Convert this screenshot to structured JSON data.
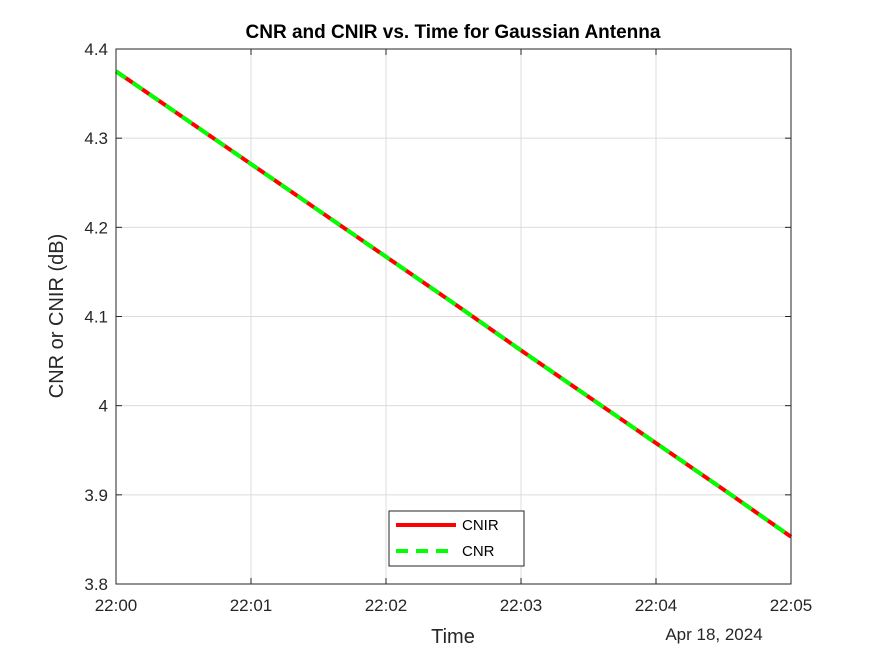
{
  "chart_data": {
    "type": "line",
    "title": "CNR and CNIR vs. Time for Gaussian Antenna",
    "xlabel": "Time",
    "ylabel": "CNR or CNIR (dB)",
    "date_label": "Apr 18, 2024",
    "x_unit": "minutes after 22:00",
    "xlim": [
      0,
      5
    ],
    "ylim": [
      3.8,
      4.4
    ],
    "x_ticks": [
      0,
      1,
      2,
      3,
      4,
      5
    ],
    "x_tick_labels": [
      "22:00",
      "22:01",
      "22:02",
      "22:03",
      "22:04",
      "22:05"
    ],
    "y_ticks": [
      3.8,
      3.9,
      4.0,
      4.1,
      4.2,
      4.3,
      4.4
    ],
    "y_tick_labels": [
      "3.8",
      "3.9",
      "4",
      "4.1",
      "4.2",
      "4.3",
      "4.4"
    ],
    "grid": true,
    "legend_position": "bottom-center",
    "series": [
      {
        "name": "CNIR",
        "color": "#ff0000",
        "style": "solid",
        "x": [
          0,
          0.5,
          1,
          1.5,
          2,
          2.5,
          3,
          3.5,
          4,
          4.5,
          5
        ],
        "values": [
          4.375,
          4.323,
          4.271,
          4.219,
          4.167,
          4.115,
          4.062,
          4.01,
          3.958,
          3.906,
          3.853
        ]
      },
      {
        "name": "CNR",
        "color": "#00ff00",
        "style": "dashed",
        "x": [
          0,
          0.5,
          1,
          1.5,
          2,
          2.5,
          3,
          3.5,
          4,
          4.5,
          5
        ],
        "values": [
          4.375,
          4.323,
          4.271,
          4.219,
          4.167,
          4.115,
          4.062,
          4.01,
          3.958,
          3.906,
          3.853
        ]
      }
    ]
  }
}
